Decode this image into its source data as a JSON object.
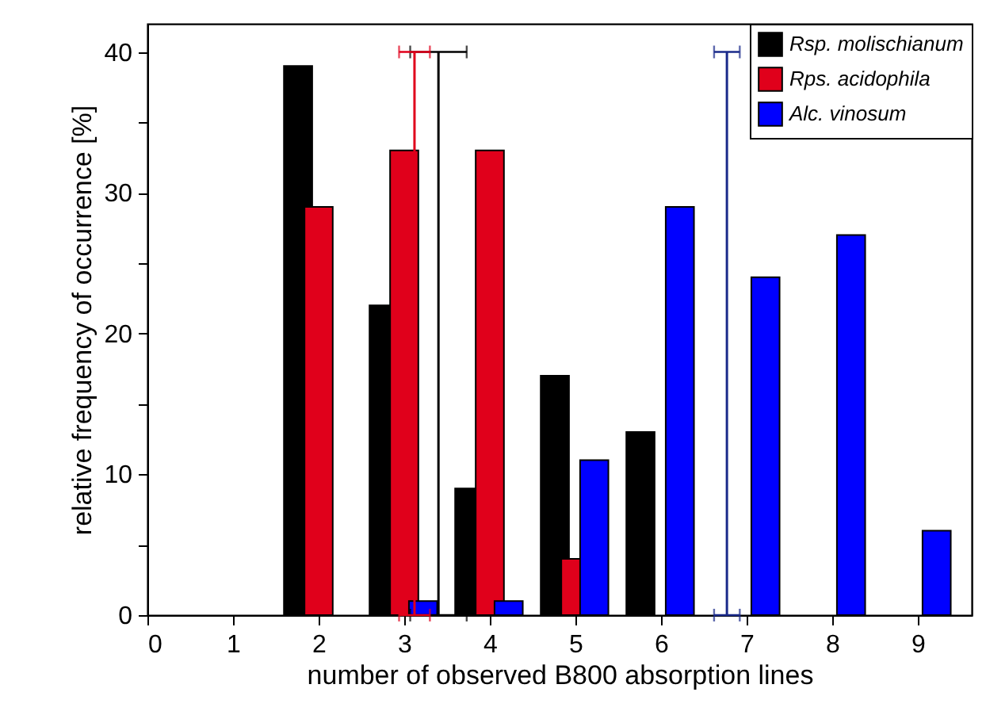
{
  "chart_data": {
    "type": "bar",
    "xlabel": "number of observed B800 absorption lines",
    "ylabel": "relative frequency of occurrence [%]",
    "xlim": [
      0,
      9.63
    ],
    "xticks": [
      0,
      1,
      2,
      3,
      4,
      5,
      6,
      7,
      8,
      9
    ],
    "ylim": [
      0,
      42
    ],
    "yticks": [
      0,
      {
        "value": 5,
        "label": null
      },
      10,
      {
        "value": 15,
        "label": null
      },
      20,
      {
        "value": 25,
        "label": null
      },
      30,
      {
        "value": 35,
        "label": null
      },
      40
    ],
    "series": [
      {
        "name": "Rsp. molischianum",
        "color": "#000000",
        "x": [
          1.76,
          2.76,
          3.76,
          4.76,
          5.76
        ],
        "values": [
          39,
          22,
          9,
          17,
          13
        ]
      },
      {
        "name": "Rps. acidophila",
        "color": "#e0001b",
        "x": [
          2.0,
          3.0,
          4.0,
          5.0
        ],
        "values": [
          29,
          33,
          33,
          4
        ]
      },
      {
        "name": "Alc. vinosum",
        "color": "#0000ff",
        "x": [
          3.22,
          4.22,
          5.22,
          6.22,
          7.22,
          8.22,
          9.22
        ],
        "values": [
          1,
          1,
          11,
          29,
          24,
          27,
          6
        ]
      },
      {
        "type": "line",
        "color": "#000000",
        "x": [
          3.4,
          3.4
        ],
        "values": [
          0,
          40
        ],
        "xerrors": [
          0.33,
          0.33
        ]
      },
      {
        "type": "line",
        "color": "#e0001b",
        "x": [
          3.12,
          3.12
        ],
        "values": [
          0,
          40
        ],
        "xerrors": [
          0.18,
          0.18
        ]
      },
      {
        "type": "line",
        "color": "#1a2a8a",
        "x": [
          6.77,
          6.77
        ],
        "values": [
          0,
          40
        ],
        "xerrors": [
          0.15,
          0.15
        ]
      }
    ],
    "legend": "top right",
    "marker": "none"
  }
}
